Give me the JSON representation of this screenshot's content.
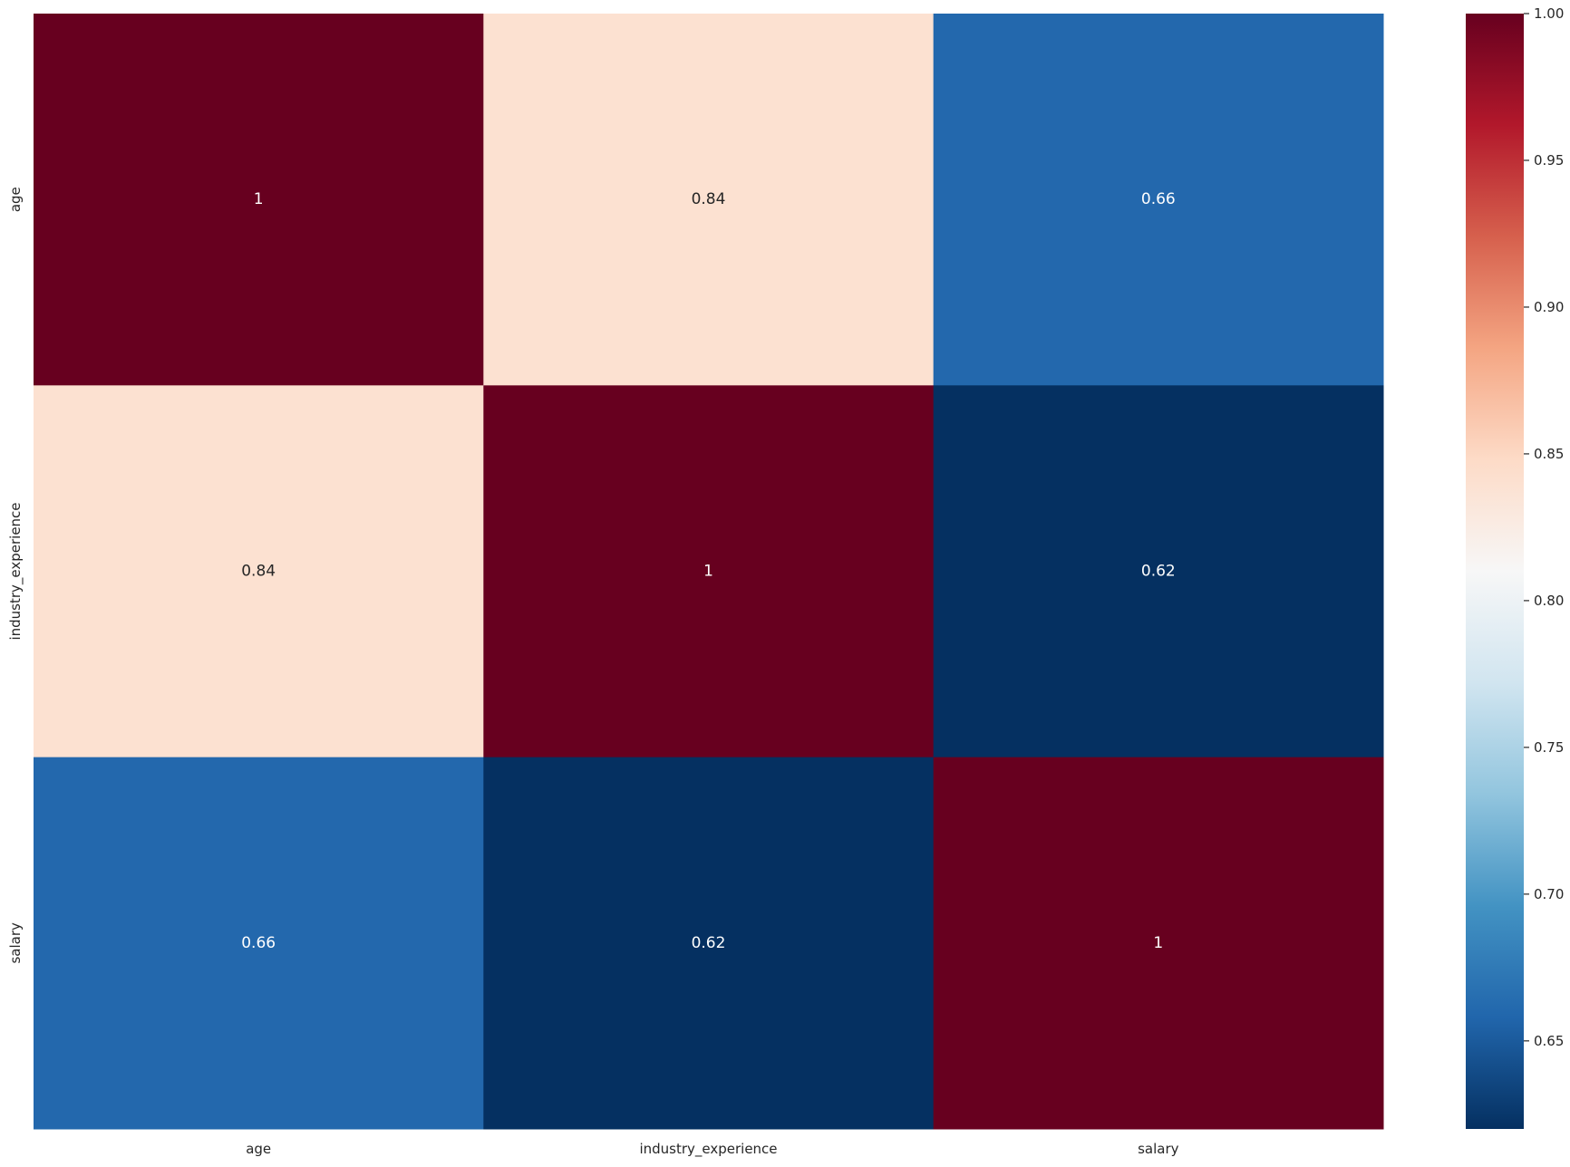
{
  "chart_data": {
    "type": "heatmap",
    "title": "",
    "xlabel": "",
    "ylabel": "",
    "x_labels": [
      "age",
      "industry_experience",
      "salary"
    ],
    "y_labels": [
      "age",
      "industry_experience",
      "salary"
    ],
    "values": [
      [
        1.0,
        0.84,
        0.66
      ],
      [
        0.84,
        1.0,
        0.62
      ],
      [
        0.66,
        0.62,
        1.0
      ]
    ],
    "annotations": [
      [
        "1",
        "0.84",
        "0.66"
      ],
      [
        "0.84",
        "1",
        "0.62"
      ],
      [
        "0.66",
        "0.62",
        "1"
      ]
    ],
    "colormap": "RdBu_r",
    "vmin": 0.62,
    "vmax": 1.0,
    "colorbar": {
      "ticks": [
        0.65,
        0.7,
        0.75,
        0.8,
        0.85,
        0.9,
        0.95,
        1.0
      ],
      "tick_labels": [
        "0.65",
        "0.70",
        "0.75",
        "0.80",
        "0.85",
        "0.90",
        "0.95",
        "1.00"
      ]
    },
    "colors": {
      "stops": [
        "#053061",
        "#2166ac",
        "#4393c3",
        "#92c5de",
        "#d1e5f0",
        "#f7f7f7",
        "#fddbc7",
        "#f4a582",
        "#d6604d",
        "#b2182b",
        "#67001f"
      ],
      "text_light": "#ffffff",
      "text_dark": "#262626",
      "tick_label": "#262626"
    }
  }
}
